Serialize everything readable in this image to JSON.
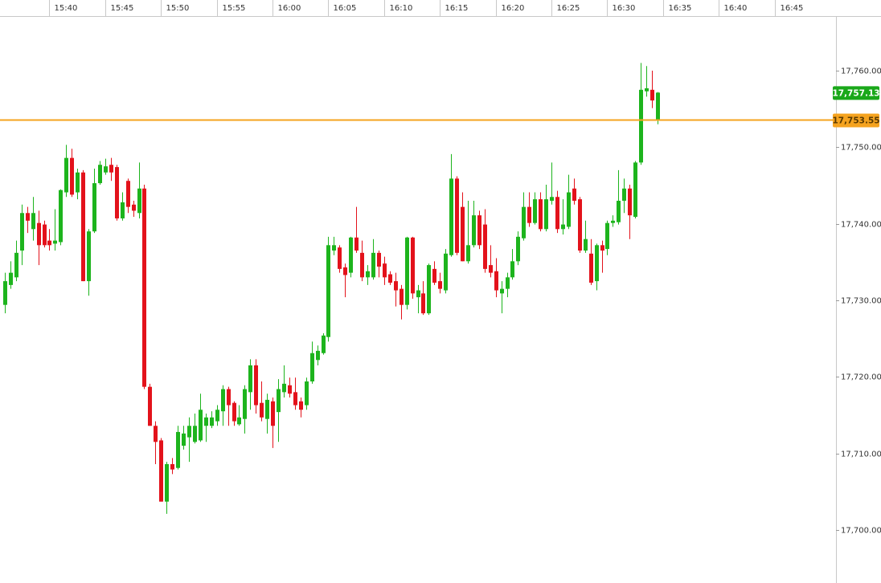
{
  "chart_data": {
    "type": "candlestick",
    "x": [
      936,
      936.5,
      937,
      937.5,
      938,
      938.5,
      939,
      939.5,
      940,
      940.5,
      941,
      941.5,
      942,
      942.5,
      943,
      943.5,
      944,
      944.5,
      945,
      945.5,
      946,
      946.5,
      947,
      947.5,
      948,
      948.5,
      949,
      949.5,
      950,
      950.5,
      951,
      951.5,
      952,
      952.5,
      953,
      953.5,
      954,
      954.5,
      955,
      955.5,
      956,
      956.5,
      957,
      957.5,
      958,
      958.5,
      959,
      959.5,
      960,
      960.5,
      961,
      961.5,
      962,
      962.5,
      963,
      963.5,
      964,
      964.5,
      965,
      965.5,
      966,
      966.5,
      967,
      967.5,
      968,
      968.5,
      969,
      969.5,
      970,
      970.5,
      971,
      971.5,
      972,
      972.5,
      973,
      973.5,
      974,
      974.5,
      975,
      975.5,
      976,
      976.5,
      977,
      977.5,
      978,
      978.5,
      979,
      979.5,
      980,
      980.5,
      981,
      981.5,
      982,
      982.5,
      983,
      983.5,
      984,
      984.5,
      985,
      985.5,
      986,
      986.5,
      987,
      987.5,
      988,
      988.5,
      989,
      989.5,
      990,
      990.5,
      991,
      991.5,
      992,
      992.5,
      993,
      993.5,
      994,
      994.5
    ],
    "open": [
      17729.4,
      17732.0,
      17733.0,
      17736.5,
      17741.4,
      17739.3,
      17740.1,
      17739.9,
      17737.8,
      17737.4,
      17737.6,
      17744.1,
      17748.6,
      17744.1,
      17746.7,
      17732.5,
      17739.0,
      17745.3,
      17746.7,
      17747.7,
      17747.4,
      17740.7,
      17745.6,
      17742.5,
      17741.4,
      17744.6,
      17718.7,
      17713.6,
      17711.7,
      17703.7,
      17708.6,
      17708.1,
      17711.0,
      17712.1,
      17711.5,
      17711.7,
      17713.6,
      17713.6,
      17714.2,
      17715.5,
      17718.4,
      17716.6,
      17713.8,
      17714.5,
      17718.0,
      17721.5,
      17716.6,
      17714.5,
      17716.8,
      17715.4,
      17718.0,
      17718.9,
      17718.0,
      17716.8,
      17716.3,
      17719.4,
      17722.2,
      17723.1,
      17725.2,
      17736.5,
      17736.9,
      17734.3,
      17733.6,
      17738.2,
      17736.2,
      17733.0,
      17733.0,
      17736.2,
      17734.8,
      17733.4,
      17732.5,
      17731.5,
      17729.4,
      17738.2,
      17730.4,
      17730.9,
      17728.3,
      17734.1,
      17732.5,
      17731.3,
      17735.9,
      17745.9,
      17742.2,
      17735.1,
      17737.2,
      17741.1,
      17739.9,
      17734.6,
      17733.8,
      17730.9,
      17731.5,
      17733.0,
      17735.1,
      17738.1,
      17742.2,
      17740.1,
      17743.2,
      17739.3,
      17743.0,
      17743.5,
      17739.3,
      17739.6,
      17744.6,
      17743.2,
      17736.5,
      17736.1,
      17732.5,
      17737.2,
      17736.7,
      17740.1,
      17740.2,
      17743.0,
      17744.6,
      17740.9,
      17748.0,
      17757.3,
      17757.5,
      17753.5
    ],
    "high": [
      17733.6,
      17735.1,
      17737.8,
      17742.5,
      17742.2,
      17743.5,
      17741.7,
      17740.4,
      17739.3,
      17741.9,
      17744.5,
      17750.3,
      17749.8,
      17747.2,
      17747.0,
      17739.3,
      17747.2,
      17748.2,
      17748.5,
      17748.6,
      17747.7,
      17744.1,
      17745.9,
      17743.0,
      17748.0,
      17745.1,
      17719.1,
      17714.2,
      17712.0,
      17708.9,
      17709.4,
      17713.6,
      17713.6,
      17714.7,
      17715.2,
      17717.8,
      17715.2,
      17715.5,
      17716.3,
      17718.9,
      17718.7,
      17716.8,
      17716.3,
      17718.9,
      17722.3,
      17722.3,
      17719.4,
      17717.8,
      17717.3,
      17719.7,
      17721.5,
      17719.9,
      17719.9,
      17717.3,
      17719.9,
      17724.6,
      17724.1,
      17725.7,
      17738.3,
      17738.3,
      17737.2,
      17734.8,
      17738.3,
      17742.2,
      17737.8,
      17734.6,
      17738.0,
      17736.5,
      17735.7,
      17733.8,
      17733.6,
      17732.0,
      17738.3,
      17738.3,
      17732.0,
      17732.5,
      17734.8,
      17735.1,
      17733.6,
      17736.7,
      17749.1,
      17746.2,
      17744.1,
      17743.0,
      17743.0,
      17741.7,
      17741.9,
      17737.2,
      17735.5,
      17732.5,
      17733.6,
      17736.7,
      17739.0,
      17744.1,
      17744.1,
      17744.1,
      17744.1,
      17745.1,
      17748.0,
      17744.3,
      17743.2,
      17746.4,
      17745.9,
      17743.5,
      17740.4,
      17738.0,
      17737.4,
      17737.8,
      17740.4,
      17741.1,
      17747.0,
      17745.9,
      17745.1,
      17748.2,
      17761.0,
      17760.6,
      17760.0,
      17757.2
    ],
    "low": [
      17728.3,
      17731.5,
      17732.5,
      17734.6,
      17738.8,
      17737.8,
      17734.6,
      17736.9,
      17736.5,
      17736.5,
      17737.2,
      17743.5,
      17743.5,
      17743.2,
      17732.5,
      17730.6,
      17738.8,
      17745.1,
      17746.4,
      17745.6,
      17740.4,
      17740.4,
      17741.4,
      17740.9,
      17740.7,
      17718.4,
      17713.6,
      17708.6,
      17703.7,
      17702.1,
      17707.3,
      17707.9,
      17710.5,
      17708.9,
      17711.3,
      17711.5,
      17711.5,
      17713.3,
      17713.6,
      17713.6,
      17713.6,
      17713.6,
      17713.6,
      17712.6,
      17715.7,
      17715.2,
      17714.2,
      17712.6,
      17710.7,
      17711.5,
      17717.3,
      17717.3,
      17715.7,
      17714.7,
      17715.7,
      17719.1,
      17721.5,
      17722.9,
      17724.6,
      17735.9,
      17733.6,
      17730.4,
      17733.0,
      17736.2,
      17732.5,
      17732.0,
      17732.7,
      17733.0,
      17732.0,
      17732.0,
      17729.2,
      17727.5,
      17728.8,
      17730.2,
      17728.3,
      17728.1,
      17728.1,
      17732.0,
      17730.9,
      17730.9,
      17735.7,
      17735.9,
      17735.1,
      17734.8,
      17736.9,
      17736.7,
      17733.6,
      17733.0,
      17730.4,
      17728.3,
      17730.4,
      17732.7,
      17734.6,
      17737.8,
      17739.6,
      17739.9,
      17739.0,
      17739.0,
      17742.5,
      17738.8,
      17738.6,
      17739.3,
      17742.5,
      17736.2,
      17736.2,
      17732.0,
      17731.3,
      17733.6,
      17735.9,
      17739.6,
      17739.9,
      17741.4,
      17738.0,
      17740.7,
      17747.7,
      17756.6,
      17755.1,
      17753.0
    ],
    "close": [
      17732.5,
      17733.6,
      17736.2,
      17741.4,
      17740.4,
      17741.4,
      17737.2,
      17737.2,
      17737.2,
      17737.8,
      17744.4,
      17748.6,
      17743.8,
      17746.7,
      17732.5,
      17739.0,
      17745.3,
      17747.7,
      17747.5,
      17746.7,
      17740.7,
      17742.8,
      17742.2,
      17741.7,
      17744.6,
      17718.7,
      17713.6,
      17711.5,
      17703.7,
      17708.6,
      17707.9,
      17712.8,
      17712.6,
      17713.6,
      17713.6,
      17715.7,
      17714.7,
      17714.7,
      17715.7,
      17718.4,
      17716.3,
      17714.2,
      17714.7,
      17718.4,
      17721.5,
      17716.3,
      17714.7,
      17717.0,
      17713.6,
      17718.4,
      17719.1,
      17717.8,
      17716.3,
      17715.7,
      17719.4,
      17723.1,
      17723.4,
      17725.4,
      17737.2,
      17737.2,
      17734.1,
      17733.3,
      17738.2,
      17736.5,
      17733.0,
      17733.8,
      17736.2,
      17734.4,
      17733.0,
      17732.3,
      17731.3,
      17729.4,
      17738.2,
      17730.9,
      17731.3,
      17728.3,
      17734.6,
      17732.3,
      17731.5,
      17736.1,
      17745.9,
      17736.2,
      17735.1,
      17737.2,
      17741.1,
      17737.2,
      17734.1,
      17733.6,
      17731.3,
      17731.5,
      17733.0,
      17735.1,
      17738.3,
      17742.2,
      17740.1,
      17743.2,
      17739.3,
      17743.2,
      17743.5,
      17739.3,
      17739.9,
      17744.1,
      17743.0,
      17736.5,
      17738.0,
      17732.3,
      17737.2,
      17736.5,
      17740.1,
      17740.4,
      17743.0,
      17744.6,
      17741.1,
      17748.0,
      17757.5,
      17757.7,
      17756.1,
      17757.13
    ],
    "up_color": "#1db41d",
    "down_color": "#e3121b",
    "xlim": [
      935.57,
      1010.5
    ],
    "xticks": [
      {
        "value": 940,
        "label": "15:40"
      },
      {
        "value": 945,
        "label": "15:45"
      },
      {
        "value": 950,
        "label": "15:50"
      },
      {
        "value": 955,
        "label": "15:55"
      },
      {
        "value": 960,
        "label": "16:00"
      },
      {
        "value": 965,
        "label": "16:05"
      },
      {
        "value": 970,
        "label": "16:10"
      },
      {
        "value": 975,
        "label": "16:15"
      },
      {
        "value": 980,
        "label": "16:20"
      },
      {
        "value": 985,
        "label": "16:25"
      },
      {
        "value": 990,
        "label": "16:30"
      },
      {
        "value": 995,
        "label": "16:35"
      },
      {
        "value": 1000,
        "label": "16:40"
      },
      {
        "value": 1005,
        "label": "16:45"
      }
    ],
    "ylim": [
      17693.07,
      17767.13
    ],
    "yticks": [
      {
        "value": 17700,
        "label": "17,700.00"
      },
      {
        "value": 17710,
        "label": "17,710.00"
      },
      {
        "value": 17720,
        "label": "17,720.00"
      },
      {
        "value": 17730,
        "label": "17,730.00"
      },
      {
        "value": 17740,
        "label": "17,740.00"
      },
      {
        "value": 17750,
        "label": "17,750.00"
      },
      {
        "value": 17760,
        "label": "17,760.00"
      }
    ],
    "last_price": {
      "value": 17757.13,
      "label": "17,757.13",
      "color": "#1aa81a"
    },
    "price_line": {
      "value": 17753.55,
      "label": "17,753.55",
      "color": "#f5a31f"
    }
  }
}
